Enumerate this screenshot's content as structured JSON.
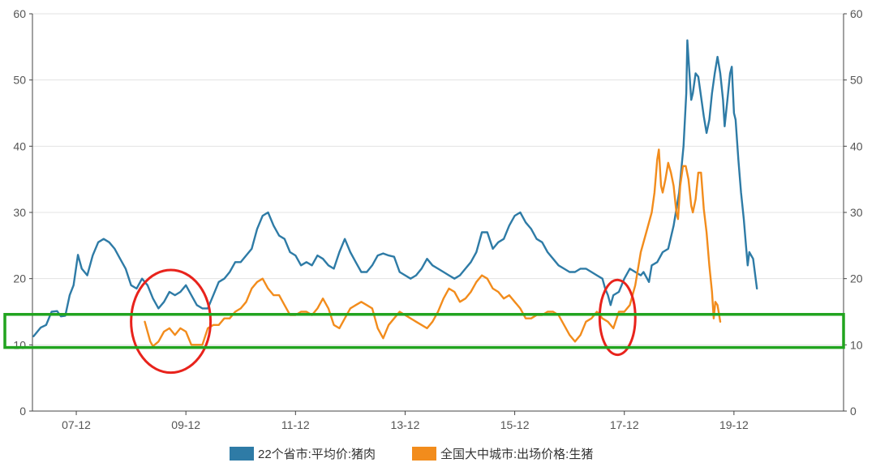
{
  "chart_data": {
    "type": "line",
    "x_unit": "year",
    "x_range": [
      2006.2,
      2021.0
    ],
    "x_ticks": [
      {
        "x": 2007.0,
        "label": "07-12"
      },
      {
        "x": 2009.0,
        "label": "09-12"
      },
      {
        "x": 2011.0,
        "label": "11-12"
      },
      {
        "x": 2013.0,
        "label": "13-12"
      },
      {
        "x": 2015.0,
        "label": "15-12"
      },
      {
        "x": 2017.0,
        "label": "17-12"
      },
      {
        "x": 2019.0,
        "label": "19-12"
      }
    ],
    "y_left": {
      "min": 0,
      "max": 60,
      "ticks": [
        0,
        10,
        20,
        30,
        40,
        50,
        60
      ]
    },
    "y_right": {
      "min": 0,
      "max": 60,
      "ticks": [
        0,
        10,
        20,
        30,
        40,
        50,
        60
      ]
    },
    "grid": true,
    "legend_position": "bottom-center",
    "series": [
      {
        "name": "22个省市:平均价:猪肉",
        "color": "#2e7ba6",
        "points": [
          [
            2006.22,
            11.3
          ],
          [
            2006.35,
            12.6
          ],
          [
            2006.45,
            13.0
          ],
          [
            2006.55,
            15.0
          ],
          [
            2006.65,
            15.1
          ],
          [
            2006.72,
            14.3
          ],
          [
            2006.8,
            14.4
          ],
          [
            2006.88,
            17.5
          ],
          [
            2006.95,
            19.0
          ],
          [
            2007.03,
            23.6
          ],
          [
            2007.1,
            21.5
          ],
          [
            2007.2,
            20.5
          ],
          [
            2007.3,
            23.5
          ],
          [
            2007.4,
            25.5
          ],
          [
            2007.5,
            26.0
          ],
          [
            2007.6,
            25.5
          ],
          [
            2007.7,
            24.5
          ],
          [
            2007.8,
            23.0
          ],
          [
            2007.9,
            21.5
          ],
          [
            2008.0,
            19.0
          ],
          [
            2008.1,
            18.5
          ],
          [
            2008.2,
            20.0
          ],
          [
            2008.3,
            19.0
          ],
          [
            2008.4,
            17.0
          ],
          [
            2008.5,
            15.5
          ],
          [
            2008.6,
            16.5
          ],
          [
            2008.7,
            18.0
          ],
          [
            2008.8,
            17.5
          ],
          [
            2008.9,
            18.0
          ],
          [
            2009.0,
            19.0
          ],
          [
            2009.1,
            17.5
          ],
          [
            2009.2,
            16.0
          ],
          [
            2009.3,
            15.5
          ],
          [
            2009.4,
            15.5
          ],
          [
            2009.5,
            17.5
          ],
          [
            2009.6,
            19.5
          ],
          [
            2009.7,
            20.0
          ],
          [
            2009.8,
            21.0
          ],
          [
            2009.9,
            22.5
          ],
          [
            2010.0,
            22.5
          ],
          [
            2010.1,
            23.5
          ],
          [
            2010.2,
            24.5
          ],
          [
            2010.3,
            27.5
          ],
          [
            2010.4,
            29.5
          ],
          [
            2010.5,
            30.0
          ],
          [
            2010.6,
            28.0
          ],
          [
            2010.7,
            26.5
          ],
          [
            2010.8,
            26.0
          ],
          [
            2010.9,
            24.0
          ],
          [
            2011.0,
            23.5
          ],
          [
            2011.1,
            22.0
          ],
          [
            2011.2,
            22.5
          ],
          [
            2011.3,
            22.0
          ],
          [
            2011.4,
            23.5
          ],
          [
            2011.5,
            23.0
          ],
          [
            2011.6,
            22.0
          ],
          [
            2011.7,
            21.5
          ],
          [
            2011.8,
            24.0
          ],
          [
            2011.9,
            26.0
          ],
          [
            2012.0,
            24.0
          ],
          [
            2012.1,
            22.5
          ],
          [
            2012.2,
            21.0
          ],
          [
            2012.3,
            21.0
          ],
          [
            2012.4,
            22.0
          ],
          [
            2012.5,
            23.5
          ],
          [
            2012.6,
            23.8
          ],
          [
            2012.7,
            23.5
          ],
          [
            2012.8,
            23.3
          ],
          [
            2012.9,
            21.0
          ],
          [
            2013.0,
            20.5
          ],
          [
            2013.1,
            20.0
          ],
          [
            2013.2,
            20.5
          ],
          [
            2013.3,
            21.5
          ],
          [
            2013.4,
            23.0
          ],
          [
            2013.5,
            22.0
          ],
          [
            2013.6,
            21.5
          ],
          [
            2013.7,
            21.0
          ],
          [
            2013.8,
            20.5
          ],
          [
            2013.9,
            20.0
          ],
          [
            2014.0,
            20.5
          ],
          [
            2014.1,
            21.5
          ],
          [
            2014.2,
            22.5
          ],
          [
            2014.3,
            24.0
          ],
          [
            2014.4,
            27.0
          ],
          [
            2014.5,
            27.0
          ],
          [
            2014.6,
            24.5
          ],
          [
            2014.7,
            25.5
          ],
          [
            2014.8,
            26.0
          ],
          [
            2014.9,
            28.0
          ],
          [
            2015.0,
            29.5
          ],
          [
            2015.1,
            30.0
          ],
          [
            2015.2,
            28.5
          ],
          [
            2015.3,
            27.5
          ],
          [
            2015.4,
            26.0
          ],
          [
            2015.5,
            25.5
          ],
          [
            2015.6,
            24.0
          ],
          [
            2015.7,
            23.0
          ],
          [
            2015.8,
            22.0
          ],
          [
            2015.9,
            21.5
          ],
          [
            2016.0,
            21.0
          ],
          [
            2016.1,
            21.0
          ],
          [
            2016.2,
            21.5
          ],
          [
            2016.3,
            21.5
          ],
          [
            2016.4,
            21.0
          ],
          [
            2016.5,
            20.5
          ],
          [
            2016.6,
            20.0
          ],
          [
            2016.65,
            18.5
          ],
          [
            2016.7,
            17.5
          ],
          [
            2016.75,
            16.0
          ],
          [
            2016.8,
            17.5
          ],
          [
            2016.9,
            18.0
          ],
          [
            2017.0,
            20.0
          ],
          [
            2017.1,
            21.5
          ],
          [
            2017.2,
            21.0
          ],
          [
            2017.3,
            20.5
          ],
          [
            2017.35,
            21.0
          ],
          [
            2017.45,
            19.5
          ],
          [
            2017.5,
            22.0
          ],
          [
            2017.6,
            22.5
          ],
          [
            2017.7,
            24.0
          ],
          [
            2017.8,
            24.5
          ],
          [
            2017.9,
            28.0
          ],
          [
            2018.0,
            33.0
          ],
          [
            2018.08,
            40.0
          ],
          [
            2018.13,
            48.0
          ],
          [
            2018.15,
            56.0
          ],
          [
            2018.18,
            52.0
          ],
          [
            2018.22,
            47.0
          ],
          [
            2018.25,
            48.0
          ],
          [
            2018.3,
            51.0
          ],
          [
            2018.35,
            50.5
          ],
          [
            2018.4,
            47.5
          ],
          [
            2018.45,
            44.5
          ],
          [
            2018.5,
            42.0
          ],
          [
            2018.55,
            44.0
          ],
          [
            2018.6,
            48.0
          ],
          [
            2018.65,
            51.0
          ],
          [
            2018.7,
            53.5
          ],
          [
            2018.75,
            51.0
          ],
          [
            2018.8,
            47.0
          ],
          [
            2018.83,
            43.0
          ],
          [
            2018.88,
            47.0
          ],
          [
            2018.93,
            51.0
          ],
          [
            2018.96,
            52.0
          ],
          [
            2019.0,
            45.0
          ],
          [
            2019.03,
            44.0
          ],
          [
            2019.08,
            38.0
          ],
          [
            2019.13,
            33.0
          ],
          [
            2019.18,
            29.0
          ],
          [
            2019.22,
            25.0
          ],
          [
            2019.25,
            22.0
          ],
          [
            2019.28,
            24.0
          ],
          [
            2019.35,
            23.0
          ],
          [
            2019.42,
            18.5
          ]
        ]
      },
      {
        "name": "全国大中城市:出场价格:生猪",
        "color": "#f28c1c",
        "points": [
          [
            2008.25,
            13.5
          ],
          [
            2008.35,
            10.5
          ],
          [
            2008.4,
            9.8
          ],
          [
            2008.5,
            10.5
          ],
          [
            2008.6,
            12.0
          ],
          [
            2008.7,
            12.5
          ],
          [
            2008.8,
            11.5
          ],
          [
            2008.9,
            12.5
          ],
          [
            2009.0,
            12.0
          ],
          [
            2009.1,
            10.0
          ],
          [
            2009.2,
            10.0
          ],
          [
            2009.3,
            10.0
          ],
          [
            2009.4,
            12.5
          ],
          [
            2009.5,
            13.0
          ],
          [
            2009.6,
            13.0
          ],
          [
            2009.7,
            14.0
          ],
          [
            2009.8,
            14.0
          ],
          [
            2009.9,
            15.0
          ],
          [
            2010.0,
            15.5
          ],
          [
            2010.1,
            16.5
          ],
          [
            2010.2,
            18.5
          ],
          [
            2010.3,
            19.5
          ],
          [
            2010.4,
            20.0
          ],
          [
            2010.5,
            18.5
          ],
          [
            2010.6,
            17.5
          ],
          [
            2010.7,
            17.5
          ],
          [
            2010.8,
            16.0
          ],
          [
            2010.9,
            14.5
          ],
          [
            2011.0,
            14.5
          ],
          [
            2011.1,
            15.0
          ],
          [
            2011.2,
            15.0
          ],
          [
            2011.3,
            14.5
          ],
          [
            2011.4,
            15.5
          ],
          [
            2011.5,
            17.0
          ],
          [
            2011.6,
            15.5
          ],
          [
            2011.7,
            13.0
          ],
          [
            2011.8,
            12.5
          ],
          [
            2011.9,
            14.0
          ],
          [
            2012.0,
            15.5
          ],
          [
            2012.1,
            16.0
          ],
          [
            2012.2,
            16.5
          ],
          [
            2012.3,
            16.0
          ],
          [
            2012.4,
            15.5
          ],
          [
            2012.5,
            12.5
          ],
          [
            2012.6,
            11.0
          ],
          [
            2012.7,
            13.0
          ],
          [
            2012.8,
            14.0
          ],
          [
            2012.9,
            15.0
          ],
          [
            2013.0,
            14.5
          ],
          [
            2013.1,
            14.0
          ],
          [
            2013.2,
            13.5
          ],
          [
            2013.3,
            13.0
          ],
          [
            2013.4,
            12.5
          ],
          [
            2013.5,
            13.5
          ],
          [
            2013.6,
            15.0
          ],
          [
            2013.7,
            17.0
          ],
          [
            2013.8,
            18.5
          ],
          [
            2013.9,
            18.0
          ],
          [
            2014.0,
            16.5
          ],
          [
            2014.1,
            17.0
          ],
          [
            2014.2,
            18.0
          ],
          [
            2014.3,
            19.5
          ],
          [
            2014.4,
            20.5
          ],
          [
            2014.5,
            20.0
          ],
          [
            2014.6,
            18.5
          ],
          [
            2014.7,
            18.0
          ],
          [
            2014.8,
            17.0
          ],
          [
            2014.9,
            17.5
          ],
          [
            2015.0,
            16.5
          ],
          [
            2015.1,
            15.5
          ],
          [
            2015.2,
            14.0
          ],
          [
            2015.3,
            14.0
          ],
          [
            2015.4,
            14.5
          ],
          [
            2015.5,
            14.5
          ],
          [
            2015.6,
            15.0
          ],
          [
            2015.7,
            15.0
          ],
          [
            2015.8,
            14.5
          ],
          [
            2015.9,
            13.0
          ],
          [
            2016.0,
            11.5
          ],
          [
            2016.1,
            10.5
          ],
          [
            2016.2,
            11.5
          ],
          [
            2016.3,
            13.5
          ],
          [
            2016.4,
            14.0
          ],
          [
            2016.5,
            15.0
          ],
          [
            2016.6,
            14.0
          ],
          [
            2016.7,
            13.5
          ],
          [
            2016.8,
            12.5
          ],
          [
            2016.9,
            15.0
          ],
          [
            2017.0,
            15.0
          ],
          [
            2017.1,
            16.0
          ],
          [
            2017.2,
            19.0
          ],
          [
            2017.3,
            24.0
          ],
          [
            2017.4,
            27.0
          ],
          [
            2017.5,
            30.0
          ],
          [
            2017.55,
            33.0
          ],
          [
            2017.6,
            38.0
          ],
          [
            2017.63,
            39.5
          ],
          [
            2017.67,
            34.0
          ],
          [
            2017.7,
            33.0
          ],
          [
            2017.75,
            35.0
          ],
          [
            2017.8,
            37.5
          ],
          [
            2017.85,
            36.0
          ],
          [
            2017.9,
            34.0
          ],
          [
            2017.95,
            30.0
          ],
          [
            2017.98,
            29.0
          ],
          [
            2018.02,
            34.0
          ],
          [
            2018.07,
            37.0
          ],
          [
            2018.12,
            37.0
          ],
          [
            2018.17,
            35.0
          ],
          [
            2018.22,
            31.0
          ],
          [
            2018.25,
            30.0
          ],
          [
            2018.3,
            32.0
          ],
          [
            2018.35,
            36.0
          ],
          [
            2018.4,
            36.0
          ],
          [
            2018.45,
            30.5
          ],
          [
            2018.5,
            27.0
          ],
          [
            2018.55,
            22.0
          ],
          [
            2018.6,
            18.0
          ],
          [
            2018.63,
            14.0
          ],
          [
            2018.66,
            16.5
          ],
          [
            2018.7,
            16.0
          ],
          [
            2018.75,
            13.5
          ]
        ]
      }
    ]
  },
  "annotations": {
    "red_circle_1": {
      "x_range": [
        2008.0,
        2009.45
      ],
      "y_range": [
        5.8,
        21.3
      ]
    },
    "red_circle_2": {
      "x_range": [
        2016.55,
        2017.2
      ],
      "y_range": [
        8.5,
        19.8
      ]
    },
    "green_band": {
      "y_range": [
        9.6,
        14.6
      ]
    },
    "circle_color": "#e8231c",
    "band_color": "#21a41f"
  }
}
